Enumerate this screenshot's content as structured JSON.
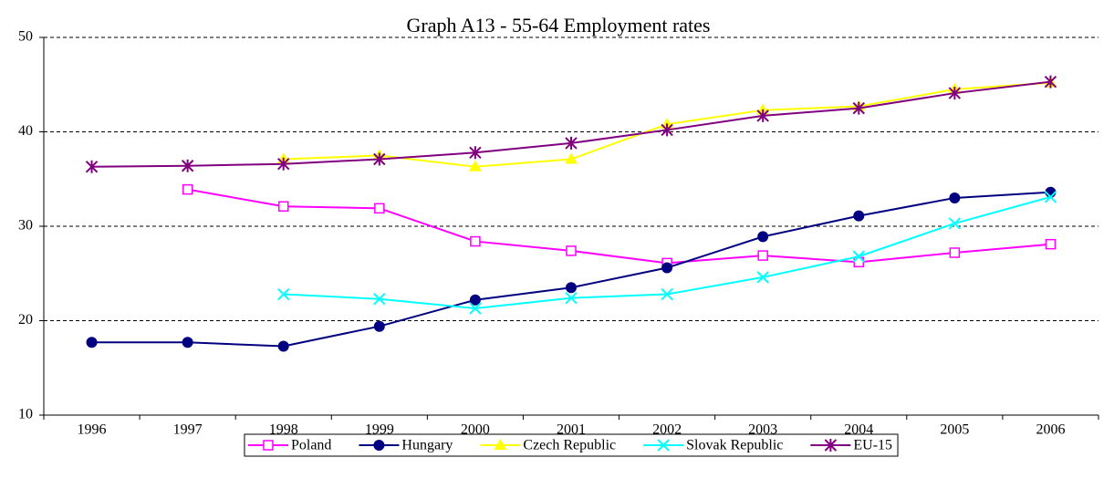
{
  "chart_data": {
    "type": "line",
    "title": "Graph A13 - 55-64 Employment rates",
    "categories": [
      "1996",
      "1997",
      "1998",
      "1999",
      "2000",
      "2001",
      "2002",
      "2003",
      "2004",
      "2005",
      "2006"
    ],
    "ylim": [
      10,
      50
    ],
    "yticks": [
      10,
      20,
      30,
      40,
      50
    ],
    "grid": true,
    "legend": "bottom",
    "series": [
      {
        "name": "Poland",
        "color": "#ff00ff",
        "marker": "square-open",
        "values": [
          null,
          33.9,
          32.1,
          31.9,
          28.4,
          27.4,
          26.1,
          26.9,
          26.2,
          27.2,
          28.1
        ]
      },
      {
        "name": "Hungary",
        "color": "#000080",
        "marker": "circle",
        "values": [
          17.7,
          17.7,
          17.3,
          19.4,
          22.2,
          23.5,
          25.6,
          28.9,
          31.1,
          33.0,
          33.6
        ]
      },
      {
        "name": "Czech Republic",
        "color": "#ffff00",
        "marker": "triangle",
        "values": [
          null,
          null,
          37.1,
          37.5,
          36.3,
          37.1,
          40.8,
          42.3,
          42.7,
          44.5,
          45.2
        ]
      },
      {
        "name": "Slovak Republic",
        "color": "#00ffff",
        "marker": "x",
        "values": [
          null,
          null,
          22.8,
          22.3,
          21.3,
          22.4,
          22.8,
          24.6,
          26.8,
          30.3,
          33.1
        ]
      },
      {
        "name": "EU-15",
        "color": "#800080",
        "marker": "asterisk",
        "values": [
          36.3,
          36.4,
          36.6,
          37.1,
          37.8,
          38.8,
          40.2,
          41.7,
          42.5,
          44.1,
          45.3
        ]
      }
    ]
  }
}
